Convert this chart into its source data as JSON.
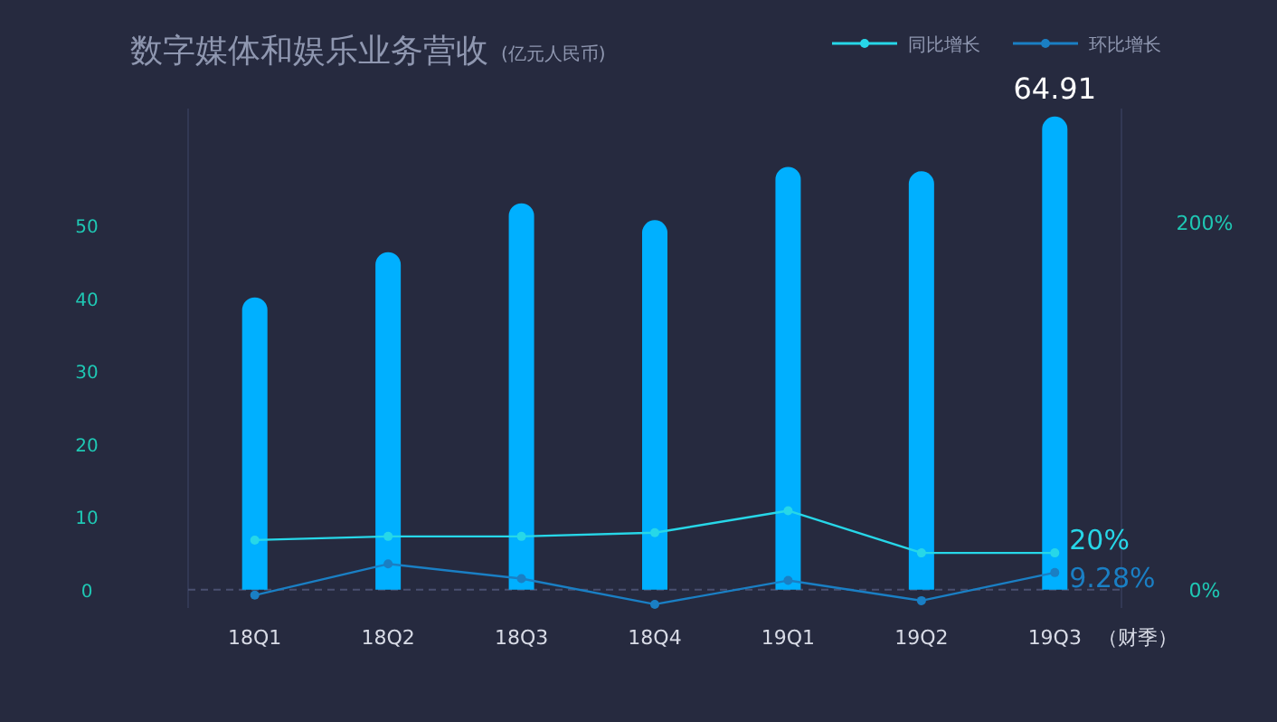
{
  "chart_data": {
    "type": "bar",
    "title": "数字媒体和娱乐业务营收",
    "subtitle": "(亿元人民币)",
    "xlabel": "（财季）",
    "categories": [
      "18Q1",
      "18Q2",
      "18Q3",
      "18Q4",
      "19Q1",
      "19Q2",
      "19Q3"
    ],
    "series": [
      {
        "color": "#00b0ff",
        "values": [
          40.1,
          46.3,
          53,
          50.7,
          58,
          57.4,
          64.91
        ],
        "value_labels": [
          null,
          null,
          null,
          null,
          null,
          null,
          "64.91"
        ]
      },
      {
        "type": "line",
        "name": "同比增长",
        "color": "#27d7e8",
        "axis": "y2",
        "values": [
          27,
          29,
          29,
          31,
          43,
          20,
          20
        ],
        "value_labels": [
          null,
          null,
          null,
          null,
          null,
          null,
          "20%"
        ]
      },
      {
        "type": "line",
        "name": "环比增长",
        "color": "#1a7fc4",
        "axis": "y2",
        "values": [
          -3,
          14,
          6,
          -8,
          5,
          -6,
          9.28
        ],
        "value_labels": [
          null,
          null,
          null,
          null,
          null,
          null,
          "9.28%"
        ]
      }
    ],
    "ylim": [
      -2.5,
      66
    ],
    "yticks": [
      0,
      10,
      20,
      30,
      40,
      50
    ],
    "y2lim": [
      -10,
      262
    ],
    "y2ticks": [
      {
        "value": 0,
        "label": "0%"
      },
      {
        "value": 200,
        "label": "200%"
      }
    ],
    "marker": "circle",
    "legend": "top right"
  }
}
